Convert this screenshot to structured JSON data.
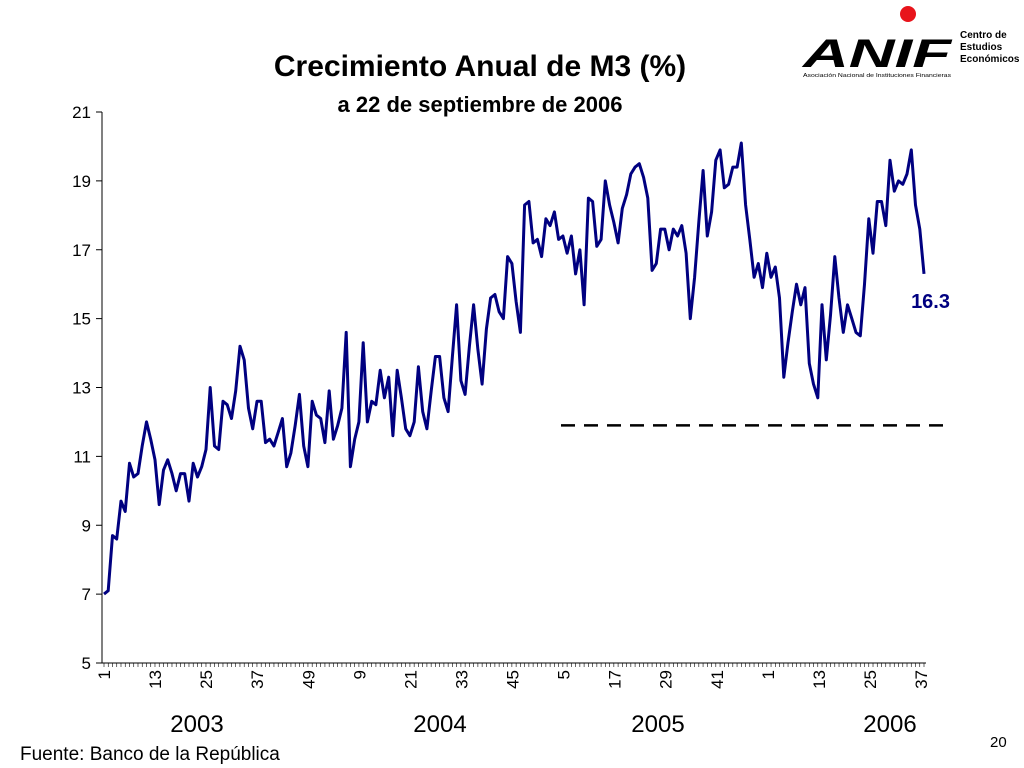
{
  "slide": {
    "title": "Crecimiento Anual de M3 (%)",
    "subtitle": "a 22 de septiembre de 2006",
    "source": "Fuente: Banco de la República",
    "page_number": "20"
  },
  "logo": {
    "wordmark": "ANIF",
    "line1": "Centro de",
    "line2": "Estudios",
    "line3": "Económicos",
    "tagline": "Asociación Nacional de Instituciones Financieras",
    "dot_color": "#e8141b"
  },
  "colors": {
    "series": "#000080",
    "reference_line": "#000000",
    "callout": "#000080"
  },
  "chart_data": {
    "type": "line",
    "title": "Crecimiento Anual de M3 (%)",
    "subtitle": "a 22 de septiembre de 2006",
    "xlabel": "",
    "ylabel": "",
    "ylim": [
      5,
      21
    ],
    "yticks": [
      5,
      7,
      9,
      11,
      13,
      15,
      17,
      19,
      21
    ],
    "grid": false,
    "legend": "none",
    "x_tick_labels": [
      "1",
      "13",
      "25",
      "37",
      "49",
      "9",
      "21",
      "33",
      "45",
      "5",
      "17",
      "29",
      "41",
      "1",
      "13",
      "25",
      "37"
    ],
    "year_labels": [
      "2003",
      "2004",
      "2005",
      "2006"
    ],
    "reference_line": {
      "y": 11.9,
      "style": "dashed"
    },
    "last_value_label": "16.3",
    "series": [
      {
        "values": [
          7.0,
          7.1,
          8.7,
          8.6,
          9.7,
          9.4,
          10.8,
          10.4,
          10.5,
          11.3,
          12.0,
          11.5,
          10.9,
          9.6,
          10.6,
          10.9,
          10.5,
          10.0,
          10.5,
          10.5,
          9.7,
          10.8,
          10.4,
          10.7,
          11.2,
          13.0,
          11.3,
          11.2,
          12.6,
          12.5,
          12.1,
          12.9,
          14.2,
          13.8,
          12.4,
          11.8,
          12.6,
          12.6,
          11.4,
          11.5,
          11.3,
          11.7,
          12.1,
          10.7,
          11.1,
          11.9,
          12.8,
          11.3,
          10.7,
          12.6,
          12.2,
          12.1,
          11.4,
          12.9,
          11.5,
          11.9,
          12.4,
          14.6,
          10.7,
          11.5,
          12.0,
          14.3,
          12.0,
          12.6,
          12.5,
          13.5,
          12.7,
          13.3,
          11.6,
          13.5,
          12.7,
          11.8,
          11.6,
          12.0,
          13.6,
          12.3,
          11.8,
          12.9,
          13.9,
          13.9,
          12.7,
          12.3,
          13.9,
          15.4,
          13.2,
          12.8,
          14.2,
          15.4,
          14.1,
          13.1,
          14.7,
          15.6,
          15.7,
          15.2,
          15.0,
          16.8,
          16.6,
          15.5,
          14.6,
          18.3,
          18.4,
          17.2,
          17.3,
          16.8,
          17.9,
          17.7,
          18.1,
          17.3,
          17.4,
          16.9,
          17.4,
          16.3,
          17.0,
          15.4,
          18.5,
          18.4,
          17.1,
          17.3,
          19.0,
          18.3,
          17.8,
          17.2,
          18.2,
          18.6,
          19.2,
          19.4,
          19.5,
          19.1,
          18.5,
          16.4,
          16.6,
          17.6,
          17.6,
          17.0,
          17.6,
          17.4,
          17.7,
          16.9,
          15.0,
          16.2,
          17.8,
          19.3,
          17.4,
          18.1,
          19.6,
          19.9,
          18.8,
          18.9,
          19.4,
          19.4,
          20.1,
          18.3,
          17.3,
          16.2,
          16.6,
          15.9,
          16.9,
          16.2,
          16.5,
          15.6,
          13.3,
          14.3,
          15.2,
          16.0,
          15.4,
          15.9,
          13.7,
          13.1,
          12.7,
          15.4,
          13.8,
          15.1,
          16.8,
          15.6,
          14.6,
          15.4,
          15.0,
          14.6,
          14.5,
          16.0,
          17.9,
          16.9,
          18.4,
          18.4,
          17.7,
          19.6,
          18.7,
          19.0,
          18.9,
          19.2,
          19.9,
          18.3,
          17.6,
          16.3
        ]
      }
    ]
  }
}
